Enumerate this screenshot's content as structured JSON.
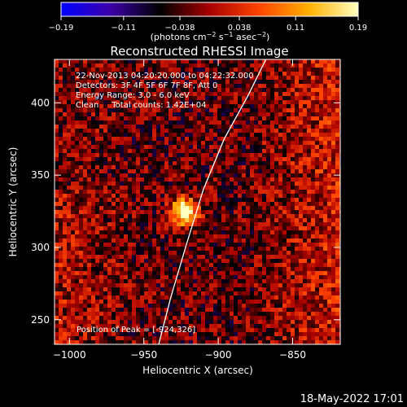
{
  "colorbar": {
    "ticks": [
      {
        "value": -0.19,
        "label": "−0.19"
      },
      {
        "value": -0.11,
        "label": "−0.11"
      },
      {
        "value": -0.038,
        "label": "−0.038"
      },
      {
        "value": 0.038,
        "label": "0.038"
      },
      {
        "value": 0.11,
        "label": "0.11"
      },
      {
        "value": 0.19,
        "label": "0.19"
      }
    ],
    "unit_base": "(photons cm",
    "unit_sup1": "−2",
    "unit_mid": " s",
    "unit_sup2": "−1",
    "unit_mid2": " asec",
    "unit_sup3": "−2",
    "unit_end": ")"
  },
  "plot": {
    "title": "Reconstructed RHESSI Image",
    "info_lines": [
      "22-Nov-2013 04:20:20.000 to 04:22:32.000",
      "Detectors: 3F 4F 5F 6F 7F 8F, Att 0",
      "Energy Range: 3.0 - 6.0 keV",
      "Clean     Total counts: 1.42E+04"
    ],
    "peak_label": "Position of Peak = [-924,326]"
  },
  "footer": {
    "timestamp": "18-May-2022 17:01"
  },
  "chart_data": {
    "type": "heatmap",
    "title": "Reconstructed RHESSI Image",
    "xlabel": "Heliocentric X (arcsec)",
    "ylabel": "Heliocentric Y (arcsec)",
    "xlim": [
      -1010,
      -818
    ],
    "ylim": [
      233,
      430
    ],
    "xticks": [
      -1000,
      -950,
      -900,
      -850
    ],
    "xtick_labels": [
      "−1000",
      "−950",
      "−900",
      "−850"
    ],
    "yticks": [
      250,
      300,
      350,
      400
    ],
    "ytick_labels": [
      "250",
      "300",
      "350",
      "400"
    ],
    "zlim": [
      -0.19,
      0.19
    ],
    "colormap": [
      "#0000ff",
      "#3c00a8",
      "#000000",
      "#a80000",
      "#ff4400",
      "#ffb000",
      "#ffffc0"
    ],
    "peak": {
      "x": -924,
      "y": 326,
      "value": 0.19
    },
    "limb_curve": [
      [
        -940,
        233
      ],
      [
        -932,
        265
      ],
      [
        -922,
        300
      ],
      [
        -910,
        340
      ],
      [
        -896,
        375
      ],
      [
        -880,
        405
      ],
      [
        -868,
        430
      ]
    ],
    "limb_color": "#ffffff"
  }
}
